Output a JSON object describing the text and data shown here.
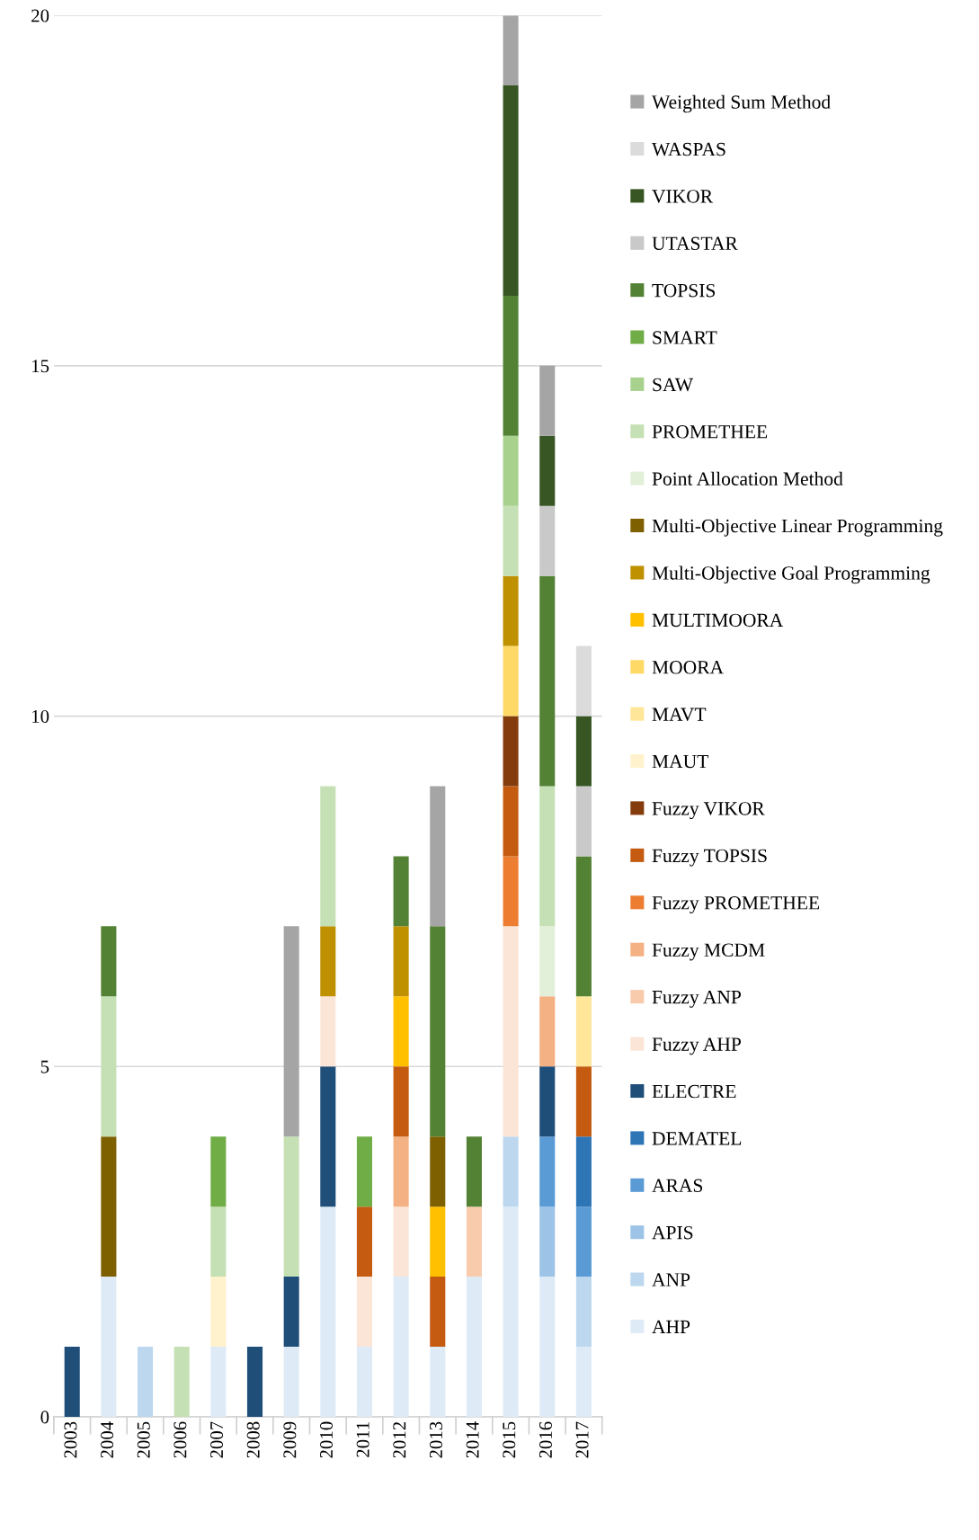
{
  "chart_data": {
    "type": "bar",
    "stacked": true,
    "categories": [
      "2003",
      "2004",
      "2005",
      "2006",
      "2007",
      "2008",
      "2009",
      "2010",
      "2011",
      "2012",
      "2013",
      "2014",
      "2015",
      "2016",
      "2017"
    ],
    "ylim": [
      0,
      20
    ],
    "yticks": [
      0,
      5,
      10,
      15,
      20
    ],
    "grid": "y",
    "legend": "right",
    "series": [
      {
        "name": "AHP",
        "color": "#deebf7",
        "values": [
          null,
          2,
          null,
          null,
          1,
          null,
          1,
          3,
          1,
          2,
          1,
          2,
          3,
          2,
          1
        ]
      },
      {
        "name": "ANP",
        "color": "#bdd7ee",
        "values": [
          null,
          null,
          1,
          null,
          null,
          null,
          null,
          null,
          null,
          null,
          null,
          null,
          1,
          null,
          1
        ]
      },
      {
        "name": "APIS",
        "color": "#9dc3e6",
        "values": [
          null,
          null,
          null,
          null,
          null,
          null,
          null,
          null,
          null,
          null,
          null,
          null,
          null,
          1,
          null
        ]
      },
      {
        "name": "ARAS",
        "color": "#5b9bd5",
        "values": [
          null,
          null,
          null,
          null,
          null,
          null,
          null,
          null,
          null,
          null,
          null,
          null,
          null,
          1,
          1
        ]
      },
      {
        "name": "DEMATEL",
        "color": "#2e75b6",
        "values": [
          null,
          null,
          null,
          null,
          null,
          null,
          null,
          null,
          null,
          null,
          null,
          null,
          null,
          null,
          1
        ]
      },
      {
        "name": "ELECTRE",
        "color": "#1f4e79",
        "values": [
          1,
          null,
          null,
          null,
          null,
          1,
          1,
          2,
          null,
          null,
          null,
          null,
          null,
          1,
          null
        ]
      },
      {
        "name": "Fuzzy AHP",
        "color": "#fbe5d6",
        "values": [
          null,
          null,
          null,
          null,
          null,
          null,
          null,
          1,
          1,
          1,
          null,
          null,
          3,
          null,
          null
        ]
      },
      {
        "name": "Fuzzy ANP",
        "color": "#f8cbad",
        "values": [
          null,
          null,
          null,
          null,
          null,
          null,
          null,
          null,
          null,
          null,
          null,
          1,
          null,
          null,
          null
        ]
      },
      {
        "name": "Fuzzy MCDM",
        "color": "#f4b183",
        "values": [
          null,
          null,
          null,
          null,
          null,
          null,
          null,
          null,
          null,
          1,
          null,
          null,
          null,
          1,
          null
        ]
      },
      {
        "name": "Fuzzy PROMETHEE",
        "color": "#ed7d31",
        "values": [
          null,
          null,
          null,
          null,
          null,
          null,
          null,
          null,
          null,
          null,
          null,
          null,
          1,
          null,
          null
        ]
      },
      {
        "name": "Fuzzy TOPSIS",
        "color": "#c55a11",
        "values": [
          null,
          null,
          null,
          null,
          null,
          null,
          null,
          null,
          1,
          1,
          1,
          null,
          1,
          null,
          1
        ]
      },
      {
        "name": "Fuzzy VIKOR",
        "color": "#843c0c",
        "values": [
          null,
          null,
          null,
          null,
          null,
          null,
          null,
          null,
          null,
          null,
          null,
          null,
          1,
          null,
          null
        ]
      },
      {
        "name": "MAUT",
        "color": "#fff2cc",
        "values": [
          null,
          null,
          null,
          null,
          1,
          null,
          null,
          null,
          null,
          null,
          null,
          null,
          null,
          null,
          null
        ]
      },
      {
        "name": "MAVT",
        "color": "#ffe699",
        "values": [
          null,
          null,
          null,
          null,
          null,
          null,
          null,
          null,
          null,
          null,
          null,
          null,
          null,
          null,
          1
        ]
      },
      {
        "name": "MOORA",
        "color": "#ffd966",
        "values": [
          null,
          null,
          null,
          null,
          null,
          null,
          null,
          null,
          null,
          null,
          null,
          null,
          1,
          null,
          null
        ]
      },
      {
        "name": "MULTIMOORA",
        "color": "#ffc000",
        "values": [
          null,
          null,
          null,
          null,
          null,
          null,
          null,
          null,
          null,
          1,
          1,
          null,
          null,
          null,
          null
        ]
      },
      {
        "name": "Multi-Objective Goal Programming",
        "color": "#bf9000",
        "values": [
          null,
          null,
          null,
          null,
          null,
          null,
          null,
          1,
          null,
          1,
          null,
          null,
          1,
          null,
          null
        ]
      },
      {
        "name": "Multi-Objective Linear Programming",
        "color": "#7f6000",
        "values": [
          null,
          2,
          null,
          null,
          null,
          null,
          null,
          null,
          null,
          null,
          1,
          null,
          null,
          null,
          null
        ]
      },
      {
        "name": "Point Allocation Method",
        "color": "#e2f0d9",
        "values": [
          null,
          null,
          null,
          null,
          null,
          null,
          null,
          null,
          null,
          null,
          null,
          null,
          null,
          1,
          null
        ]
      },
      {
        "name": "PROMETHEE",
        "color": "#c5e0b4",
        "values": [
          null,
          2,
          null,
          1,
          1,
          null,
          2,
          2,
          null,
          null,
          null,
          null,
          1,
          2,
          null
        ]
      },
      {
        "name": "SAW",
        "color": "#a9d18e",
        "values": [
          null,
          null,
          null,
          null,
          null,
          null,
          null,
          null,
          null,
          null,
          null,
          null,
          1,
          null,
          null
        ]
      },
      {
        "name": "SMART",
        "color": "#70ad47",
        "values": [
          null,
          null,
          null,
          null,
          1,
          null,
          null,
          null,
          1,
          null,
          null,
          null,
          null,
          null,
          null
        ]
      },
      {
        "name": "TOPSIS",
        "color": "#548235",
        "values": [
          null,
          1,
          null,
          null,
          null,
          null,
          null,
          null,
          null,
          1,
          3,
          1,
          2,
          3,
          2
        ]
      },
      {
        "name": "UTASTAR",
        "color": "#c9c9c9",
        "values": [
          null,
          null,
          null,
          null,
          null,
          null,
          null,
          null,
          null,
          null,
          null,
          null,
          null,
          1,
          1
        ]
      },
      {
        "name": "VIKOR",
        "color": "#375623",
        "values": [
          null,
          null,
          null,
          null,
          null,
          null,
          null,
          null,
          null,
          null,
          null,
          null,
          3,
          1,
          1
        ]
      },
      {
        "name": "WASPAS",
        "color": "#dbdbdb",
        "values": [
          null,
          null,
          null,
          null,
          null,
          null,
          null,
          null,
          null,
          null,
          null,
          null,
          null,
          null,
          1
        ]
      },
      {
        "name": "Weighted Sum Method",
        "color": "#a5a5a5",
        "values": [
          null,
          null,
          null,
          null,
          null,
          null,
          3,
          null,
          null,
          null,
          2,
          null,
          1,
          1,
          null
        ]
      }
    ]
  }
}
